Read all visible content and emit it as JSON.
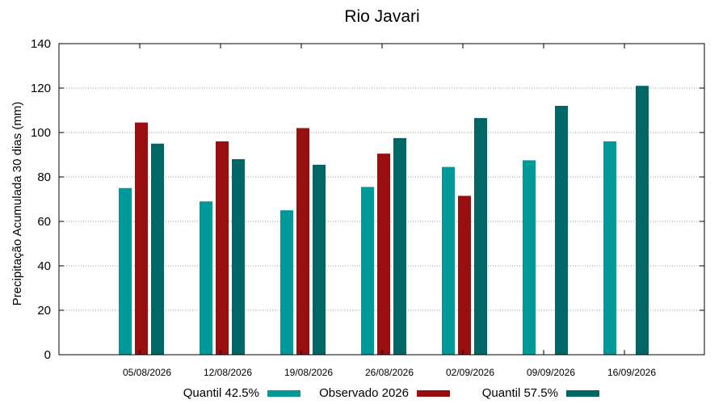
{
  "chart_data": {
    "type": "bar",
    "title": "Rio Javari",
    "xlabel": "",
    "ylabel": "Precipitação Acumulada 30 dias (mm)",
    "ylim": [
      0,
      140
    ],
    "yticks": [
      0,
      20,
      40,
      60,
      80,
      100,
      120,
      140
    ],
    "grid": "horizontal dotted",
    "legend_position": "bottom",
    "categories": [
      "05/08/2026",
      "12/08/2026",
      "19/08/2026",
      "26/08/2026",
      "02/09/2026",
      "09/09/2026",
      "16/09/2026"
    ],
    "series": [
      {
        "name": "Quantil 42.5%",
        "color": "#009999",
        "values": [
          75,
          69,
          65,
          75.5,
          84.5,
          87.5,
          96
        ]
      },
      {
        "name": "Observado 2026",
        "color": "#990f0f",
        "values": [
          104.5,
          96,
          102,
          90.5,
          71.5,
          null,
          null
        ]
      },
      {
        "name": "Quantil 57.5%",
        "color": "#006666",
        "values": [
          95,
          88,
          85.5,
          97.5,
          106.5,
          112,
          121
        ]
      }
    ]
  }
}
